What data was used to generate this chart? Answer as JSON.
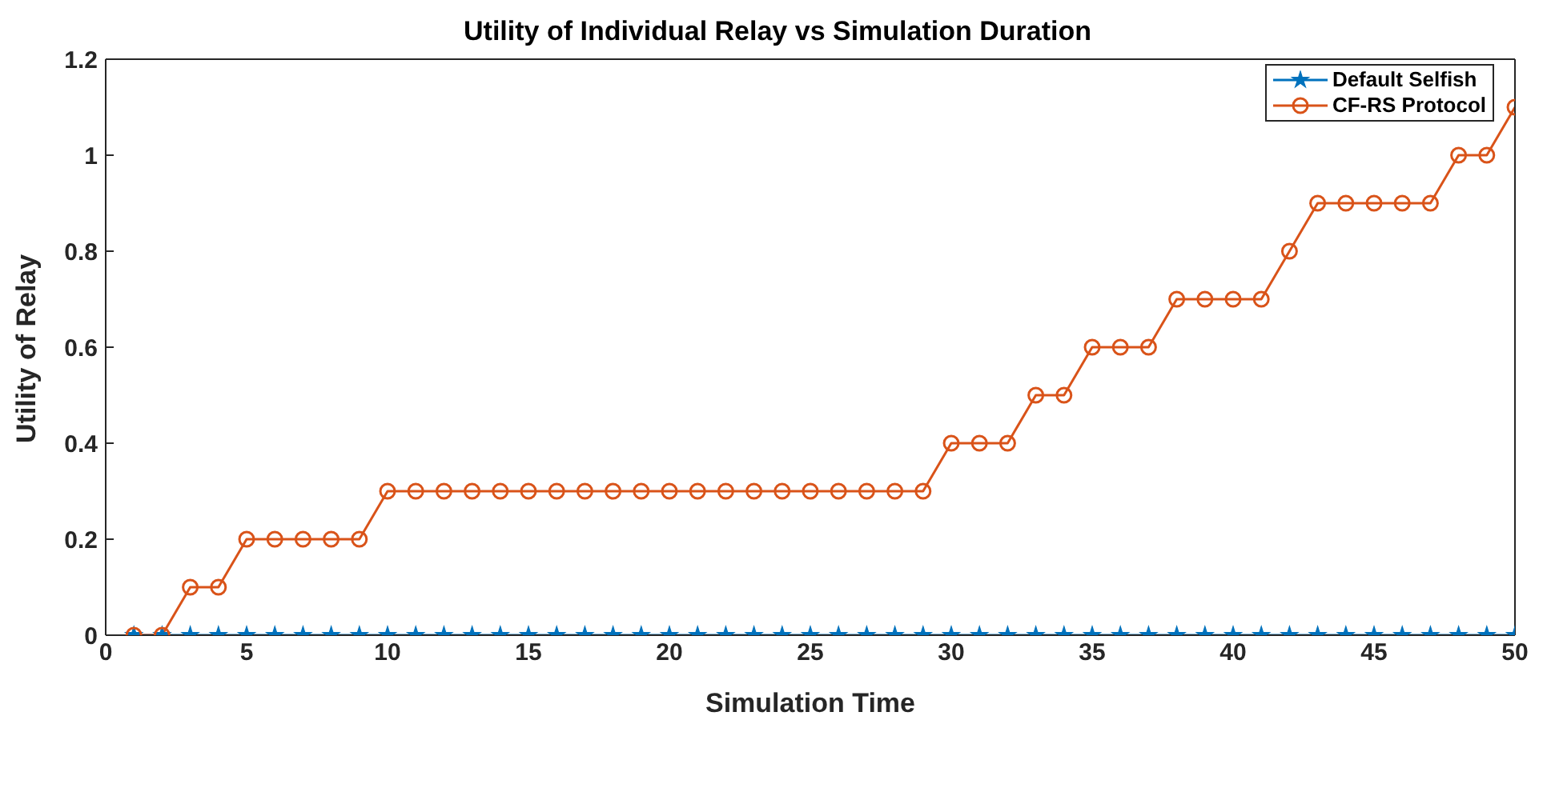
{
  "chart_data": {
    "type": "line",
    "title": "Utility of Individual Relay vs Simulation Duration",
    "xlabel": "Simulation Time",
    "ylabel": "Utility of Relay",
    "x": [
      1,
      2,
      3,
      4,
      5,
      6,
      7,
      8,
      9,
      10,
      11,
      12,
      13,
      14,
      15,
      16,
      17,
      18,
      19,
      20,
      21,
      22,
      23,
      24,
      25,
      26,
      27,
      28,
      29,
      30,
      31,
      32,
      33,
      34,
      35,
      36,
      37,
      38,
      39,
      40,
      41,
      42,
      43,
      44,
      45,
      46,
      47,
      48,
      49,
      50
    ],
    "series": [
      {
        "name": "Default Selfish",
        "color": "#0072bd",
        "marker": "star",
        "values": [
          0,
          0,
          0,
          0,
          0,
          0,
          0,
          0,
          0,
          0,
          0,
          0,
          0,
          0,
          0,
          0,
          0,
          0,
          0,
          0,
          0,
          0,
          0,
          0,
          0,
          0,
          0,
          0,
          0,
          0,
          0,
          0,
          0,
          0,
          0,
          0,
          0,
          0,
          0,
          0,
          0,
          0,
          0,
          0,
          0,
          0,
          0,
          0,
          0,
          0
        ]
      },
      {
        "name": "CF-RS Protocol",
        "color": "#d95319",
        "marker": "circle",
        "values": [
          0,
          0,
          0.1,
          0.1,
          0.2,
          0.2,
          0.2,
          0.2,
          0.2,
          0.3,
          0.3,
          0.3,
          0.3,
          0.3,
          0.3,
          0.3,
          0.3,
          0.3,
          0.3,
          0.3,
          0.3,
          0.3,
          0.3,
          0.3,
          0.3,
          0.3,
          0.3,
          0.3,
          0.3,
          0.4,
          0.4,
          0.4,
          0.5,
          0.5,
          0.6,
          0.6,
          0.6,
          0.7,
          0.7,
          0.7,
          0.7,
          0.8,
          0.9,
          0.9,
          0.9,
          0.9,
          0.9,
          1,
          1,
          1.1
        ]
      }
    ],
    "xlim": [
      0,
      50
    ],
    "xticks": [
      0,
      5,
      10,
      15,
      20,
      25,
      30,
      35,
      40,
      45,
      50
    ],
    "ylim": [
      0,
      1.2
    ],
    "yticks": [
      0,
      0.2,
      0.4,
      0.6,
      0.8,
      1,
      1.2
    ],
    "grid": false,
    "legend": "top right",
    "line_style": "solid"
  }
}
